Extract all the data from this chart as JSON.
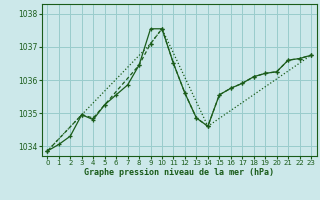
{
  "xlabel": "Graphe pression niveau de la mer (hPa)",
  "background_color": "#cce8ea",
  "grid_color": "#99cccc",
  "line_color": "#1a5c1a",
  "xlim": [
    -0.5,
    23.5
  ],
  "ylim": [
    1033.7,
    1038.3
  ],
  "yticks": [
    1034,
    1035,
    1036,
    1037,
    1038
  ],
  "xticks": [
    0,
    1,
    2,
    3,
    4,
    5,
    6,
    7,
    8,
    9,
    10,
    11,
    12,
    13,
    14,
    15,
    16,
    17,
    18,
    19,
    20,
    21,
    22,
    23
  ],
  "line1_x": [
    0,
    1,
    2,
    3,
    4,
    5,
    6,
    7,
    8,
    9,
    10,
    11,
    12,
    13,
    14,
    15,
    16,
    17,
    18,
    19,
    20,
    21,
    22,
    23
  ],
  "line1_y": [
    1033.85,
    1034.05,
    1034.3,
    1034.95,
    1034.8,
    1035.25,
    1035.55,
    1035.85,
    1036.45,
    1037.55,
    1037.55,
    1036.5,
    1035.6,
    1034.85,
    1034.6,
    1035.55,
    1035.75,
    1035.9,
    1036.1,
    1036.2,
    1036.25,
    1036.6,
    1036.65,
    1036.75
  ],
  "line2_x": [
    0,
    3,
    4,
    5,
    8,
    9,
    10,
    11,
    12,
    13,
    14,
    15,
    16,
    17,
    18,
    19,
    20,
    21,
    22,
    23
  ],
  "line2_y": [
    1033.85,
    1034.95,
    1034.85,
    1035.25,
    1036.45,
    1037.1,
    1037.55,
    1036.5,
    1035.6,
    1034.85,
    1034.6,
    1035.55,
    1035.75,
    1035.9,
    1036.1,
    1036.2,
    1036.25,
    1036.6,
    1036.65,
    1036.75
  ],
  "line3_x": [
    0,
    3,
    9,
    10,
    14,
    23
  ],
  "line3_y": [
    1033.85,
    1034.95,
    1037.1,
    1037.55,
    1034.6,
    1036.75
  ]
}
